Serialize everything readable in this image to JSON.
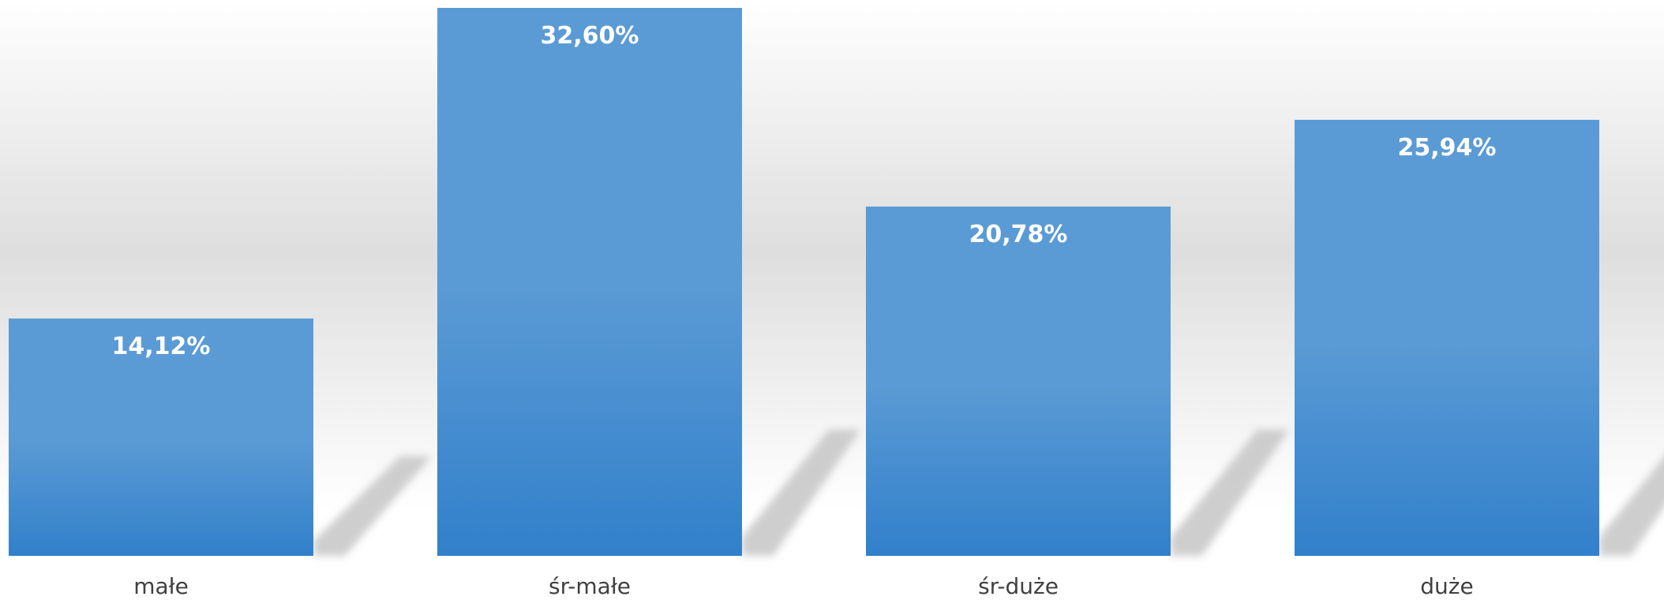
{
  "chart_data": {
    "type": "bar",
    "categories": [
      "małe",
      "śr-małe",
      "śr-duże",
      "duże"
    ],
    "values": [
      14.12,
      32.6,
      20.78,
      25.94
    ],
    "value_labels": [
      "14,12%",
      "32,60%",
      "20,78%",
      "25,94%"
    ],
    "title": "",
    "xlabel": "",
    "ylabel": "",
    "ylim": [
      0,
      32.6
    ],
    "grid": false,
    "legend": "none"
  },
  "colors": {
    "bar_top": "#5b9bd5",
    "bar_bottom": "#3280cb",
    "background_top": "#ffffff",
    "background_mid": "#dedede",
    "background_bottom": "#ffffff",
    "shadow": "#c6c6c6",
    "value_text": "#ffffff",
    "category_text": "#404040"
  }
}
